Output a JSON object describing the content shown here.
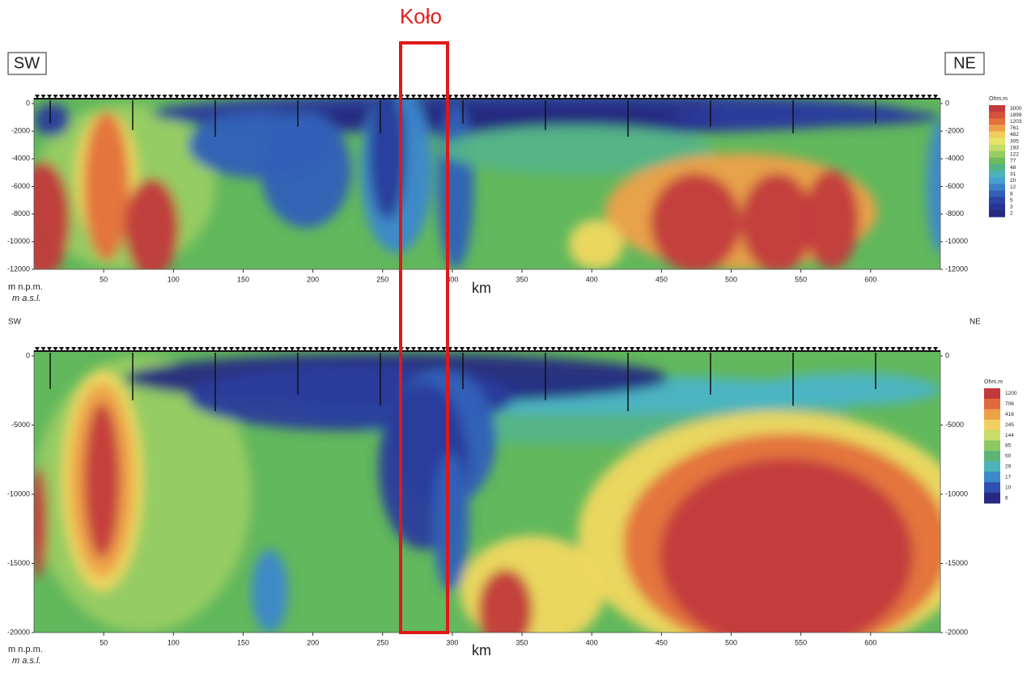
{
  "title": "Koło",
  "chart_data": [
    {
      "type": "contour",
      "left_label": "SW",
      "right_label": "NE",
      "xlabel": "km",
      "ylabel": "m n.p.m.",
      "ylabel_en": "m a.s.l.",
      "xlim": [
        0,
        650
      ],
      "xticks": [
        50,
        100,
        150,
        200,
        250,
        300,
        350,
        400,
        450,
        500,
        550,
        600
      ],
      "ylim": [
        -12000,
        0
      ],
      "yticks": [
        0,
        -2000,
        -4000,
        -6000,
        -8000,
        -10000,
        -12000
      ],
      "colorbar": {
        "label": "Ohm.m",
        "levels": [
          3000,
          1899,
          1203,
          761,
          482,
          305,
          193,
          122,
          77,
          48,
          31,
          20,
          12,
          8,
          5,
          3,
          2
        ],
        "colors": [
          "#c23a3c",
          "#d4503a",
          "#e4703c",
          "#eea048",
          "#f2cc5c",
          "#e8e46c",
          "#c4dc68",
          "#98cc62",
          "#6cbc5c",
          "#54b488",
          "#4cb4b8",
          "#46a0d0",
          "#3c80c8",
          "#3260b8",
          "#2c44a4",
          "#283494",
          "#262a80"
        ]
      }
    },
    {
      "type": "contour",
      "left_label": "SW",
      "right_label": "NE",
      "xlabel": "km",
      "ylabel": "m n.p.m.",
      "ylabel_en": "m a.s.l.",
      "xlim": [
        0,
        650
      ],
      "xticks": [
        50,
        100,
        150,
        200,
        250,
        300,
        350,
        400,
        450,
        500,
        550,
        600
      ],
      "ylim": [
        -20000,
        0
      ],
      "yticks": [
        0,
        -5000,
        -10000,
        -15000,
        -20000
      ],
      "colorbar": {
        "label": "Ohm.m",
        "levels": [
          1200,
          706,
          416,
          245,
          144,
          85,
          50,
          29,
          17,
          10,
          6
        ],
        "colors": [
          "#c23a3c",
          "#e06a3c",
          "#eea048",
          "#f2d060",
          "#c8dc68",
          "#8cc864",
          "#5cb478",
          "#4cb4b8",
          "#3c88cc",
          "#2e50b0",
          "#262a80"
        ]
      }
    }
  ]
}
